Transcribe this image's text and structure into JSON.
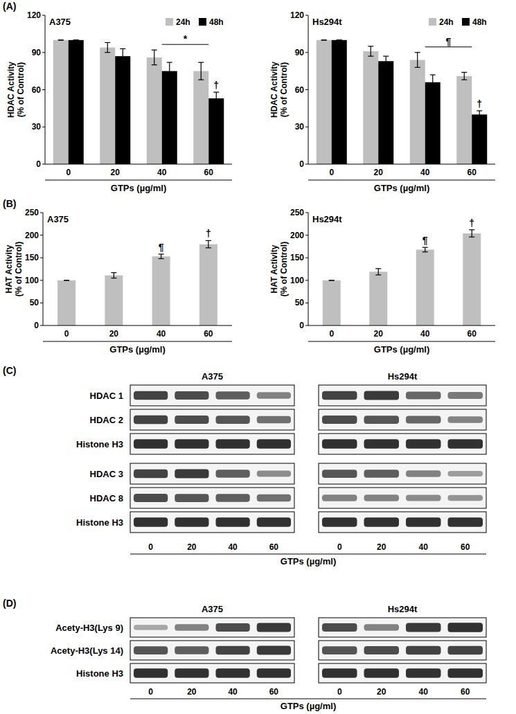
{
  "panel_labels": [
    "(A)",
    "(B)",
    "(C)",
    "(D)"
  ],
  "chart_data": [
    {
      "type": "bar",
      "title": "A375",
      "y_label": [
        "HDAC Activity",
        "(% of Control)"
      ],
      "x_label": "GTPs (µg/ml)",
      "categories": [
        "0",
        "20",
        "40",
        "60"
      ],
      "series": [
        {
          "name": "24h",
          "color": "#bfbfbf",
          "values": [
            100,
            94,
            86,
            75
          ],
          "errors": [
            0,
            4,
            6,
            7
          ]
        },
        {
          "name": "48h",
          "color": "#000000",
          "values": [
            100,
            87,
            75,
            53
          ],
          "errors": [
            0,
            6,
            7,
            5
          ]
        }
      ],
      "ylim": [
        0,
        120
      ],
      "yticks": [
        0,
        30,
        60,
        90,
        120
      ],
      "legend": "top-right",
      "annotations": [
        {
          "text": "*",
          "from": 2,
          "to": 3
        },
        {
          "text": "†",
          "category": 3,
          "series": 1
        }
      ]
    },
    {
      "type": "bar",
      "title": "Hs294t",
      "y_label": [
        "HDAC Activity",
        "(% of Control)"
      ],
      "x_label": "GTPs (µg/ml)",
      "categories": [
        "0",
        "20",
        "40",
        "60"
      ],
      "series": [
        {
          "name": "24h",
          "color": "#bfbfbf",
          "values": [
            100,
            91,
            84,
            71
          ],
          "errors": [
            0,
            4,
            6,
            3
          ]
        },
        {
          "name": "48h",
          "color": "#000000",
          "values": [
            100,
            83,
            66,
            40
          ],
          "errors": [
            0,
            4,
            6,
            3
          ]
        }
      ],
      "ylim": [
        0,
        120
      ],
      "yticks": [
        0,
        30,
        60,
        90,
        120
      ],
      "legend": "top-right",
      "annotations": [
        {
          "text": "¶",
          "from": 2,
          "to": 3
        },
        {
          "text": "†",
          "category": 3,
          "series": 1
        }
      ]
    },
    {
      "type": "bar",
      "title": "A375",
      "y_label": [
        "HAT Activity",
        "(% of Control)"
      ],
      "x_label": "GTPs (µg/ml)",
      "categories": [
        "0",
        "20",
        "40",
        "60"
      ],
      "color": "#bfbfbf",
      "values": [
        100,
        111,
        153,
        180
      ],
      "errors": [
        0,
        6,
        5,
        8
      ],
      "ylim": [
        0,
        250
      ],
      "yticks": [
        0,
        50,
        100,
        150,
        200,
        250
      ],
      "annotations": [
        {
          "text": "¶",
          "category": 2
        },
        {
          "text": "†",
          "category": 3
        }
      ]
    },
    {
      "type": "bar",
      "title": "Hs294t",
      "y_label": [
        "HAT Activity",
        "(% of Control)"
      ],
      "x_label": "GTPs (µg/ml)",
      "categories": [
        "0",
        "20",
        "40",
        "60"
      ],
      "color": "#bfbfbf",
      "values": [
        100,
        119,
        168,
        204
      ],
      "errors": [
        0,
        7,
        5,
        8
      ],
      "ylim": [
        0,
        250
      ],
      "yticks": [
        0,
        50,
        100,
        150,
        200,
        250
      ],
      "annotations": [
        {
          "text": "¶",
          "category": 2
        },
        {
          "text": "†",
          "category": 3
        }
      ]
    }
  ],
  "blots": [
    {
      "columns": [
        "A375",
        "Hs294t"
      ],
      "lanes": [
        "0",
        "20",
        "40",
        "60"
      ],
      "x_label": "GTPs (µg/ml)",
      "sections": [
        [
          {
            "label": "HDAC 1",
            "bands": [
              [
                0.85,
                0.8,
                0.7,
                0.5
              ],
              [
                0.85,
                0.9,
                0.65,
                0.55
              ]
            ]
          },
          {
            "label": "HDAC 2",
            "bands": [
              [
                0.85,
                0.8,
                0.75,
                0.6
              ],
              [
                0.8,
                0.75,
                0.65,
                0.5
              ]
            ]
          },
          {
            "label": "Histone H3",
            "bands": [
              [
                0.95,
                0.95,
                0.95,
                0.95
              ],
              [
                0.95,
                0.95,
                0.95,
                0.95
              ]
            ]
          }
        ],
        [
          {
            "label": "HDAC 3",
            "bands": [
              [
                0.85,
                0.9,
                0.7,
                0.45
              ],
              [
                0.75,
                0.7,
                0.5,
                0.35
              ]
            ]
          },
          {
            "label": "HDAC 8",
            "bands": [
              [
                0.8,
                0.75,
                0.7,
                0.6
              ],
              [
                0.5,
                0.5,
                0.45,
                0.4
              ]
            ]
          },
          {
            "label": "Histone H3",
            "bands": [
              [
                0.95,
                0.95,
                0.95,
                0.95
              ],
              [
                0.95,
                0.95,
                0.95,
                0.95
              ]
            ]
          }
        ]
      ]
    },
    {
      "columns": [
        "A375",
        "Hs294t"
      ],
      "lanes": [
        "0",
        "20",
        "40",
        "60"
      ],
      "x_label": "GTPs (µg/ml)",
      "sections": [
        [
          {
            "label": "Acety-H3(Lys 9)",
            "bands": [
              [
                0.3,
                0.5,
                0.8,
                0.9
              ],
              [
                0.8,
                0.5,
                0.9,
                0.95
              ]
            ]
          },
          {
            "label": "Acety-H3(Lys 14)",
            "bands": [
              [
                0.75,
                0.7,
                0.85,
                0.9
              ],
              [
                0.75,
                0.8,
                0.85,
                0.85
              ]
            ]
          },
          {
            "label": "Histone H3",
            "bands": [
              [
                0.95,
                0.95,
                0.95,
                0.95
              ],
              [
                0.95,
                0.95,
                0.95,
                0.95
              ]
            ]
          }
        ]
      ]
    }
  ]
}
